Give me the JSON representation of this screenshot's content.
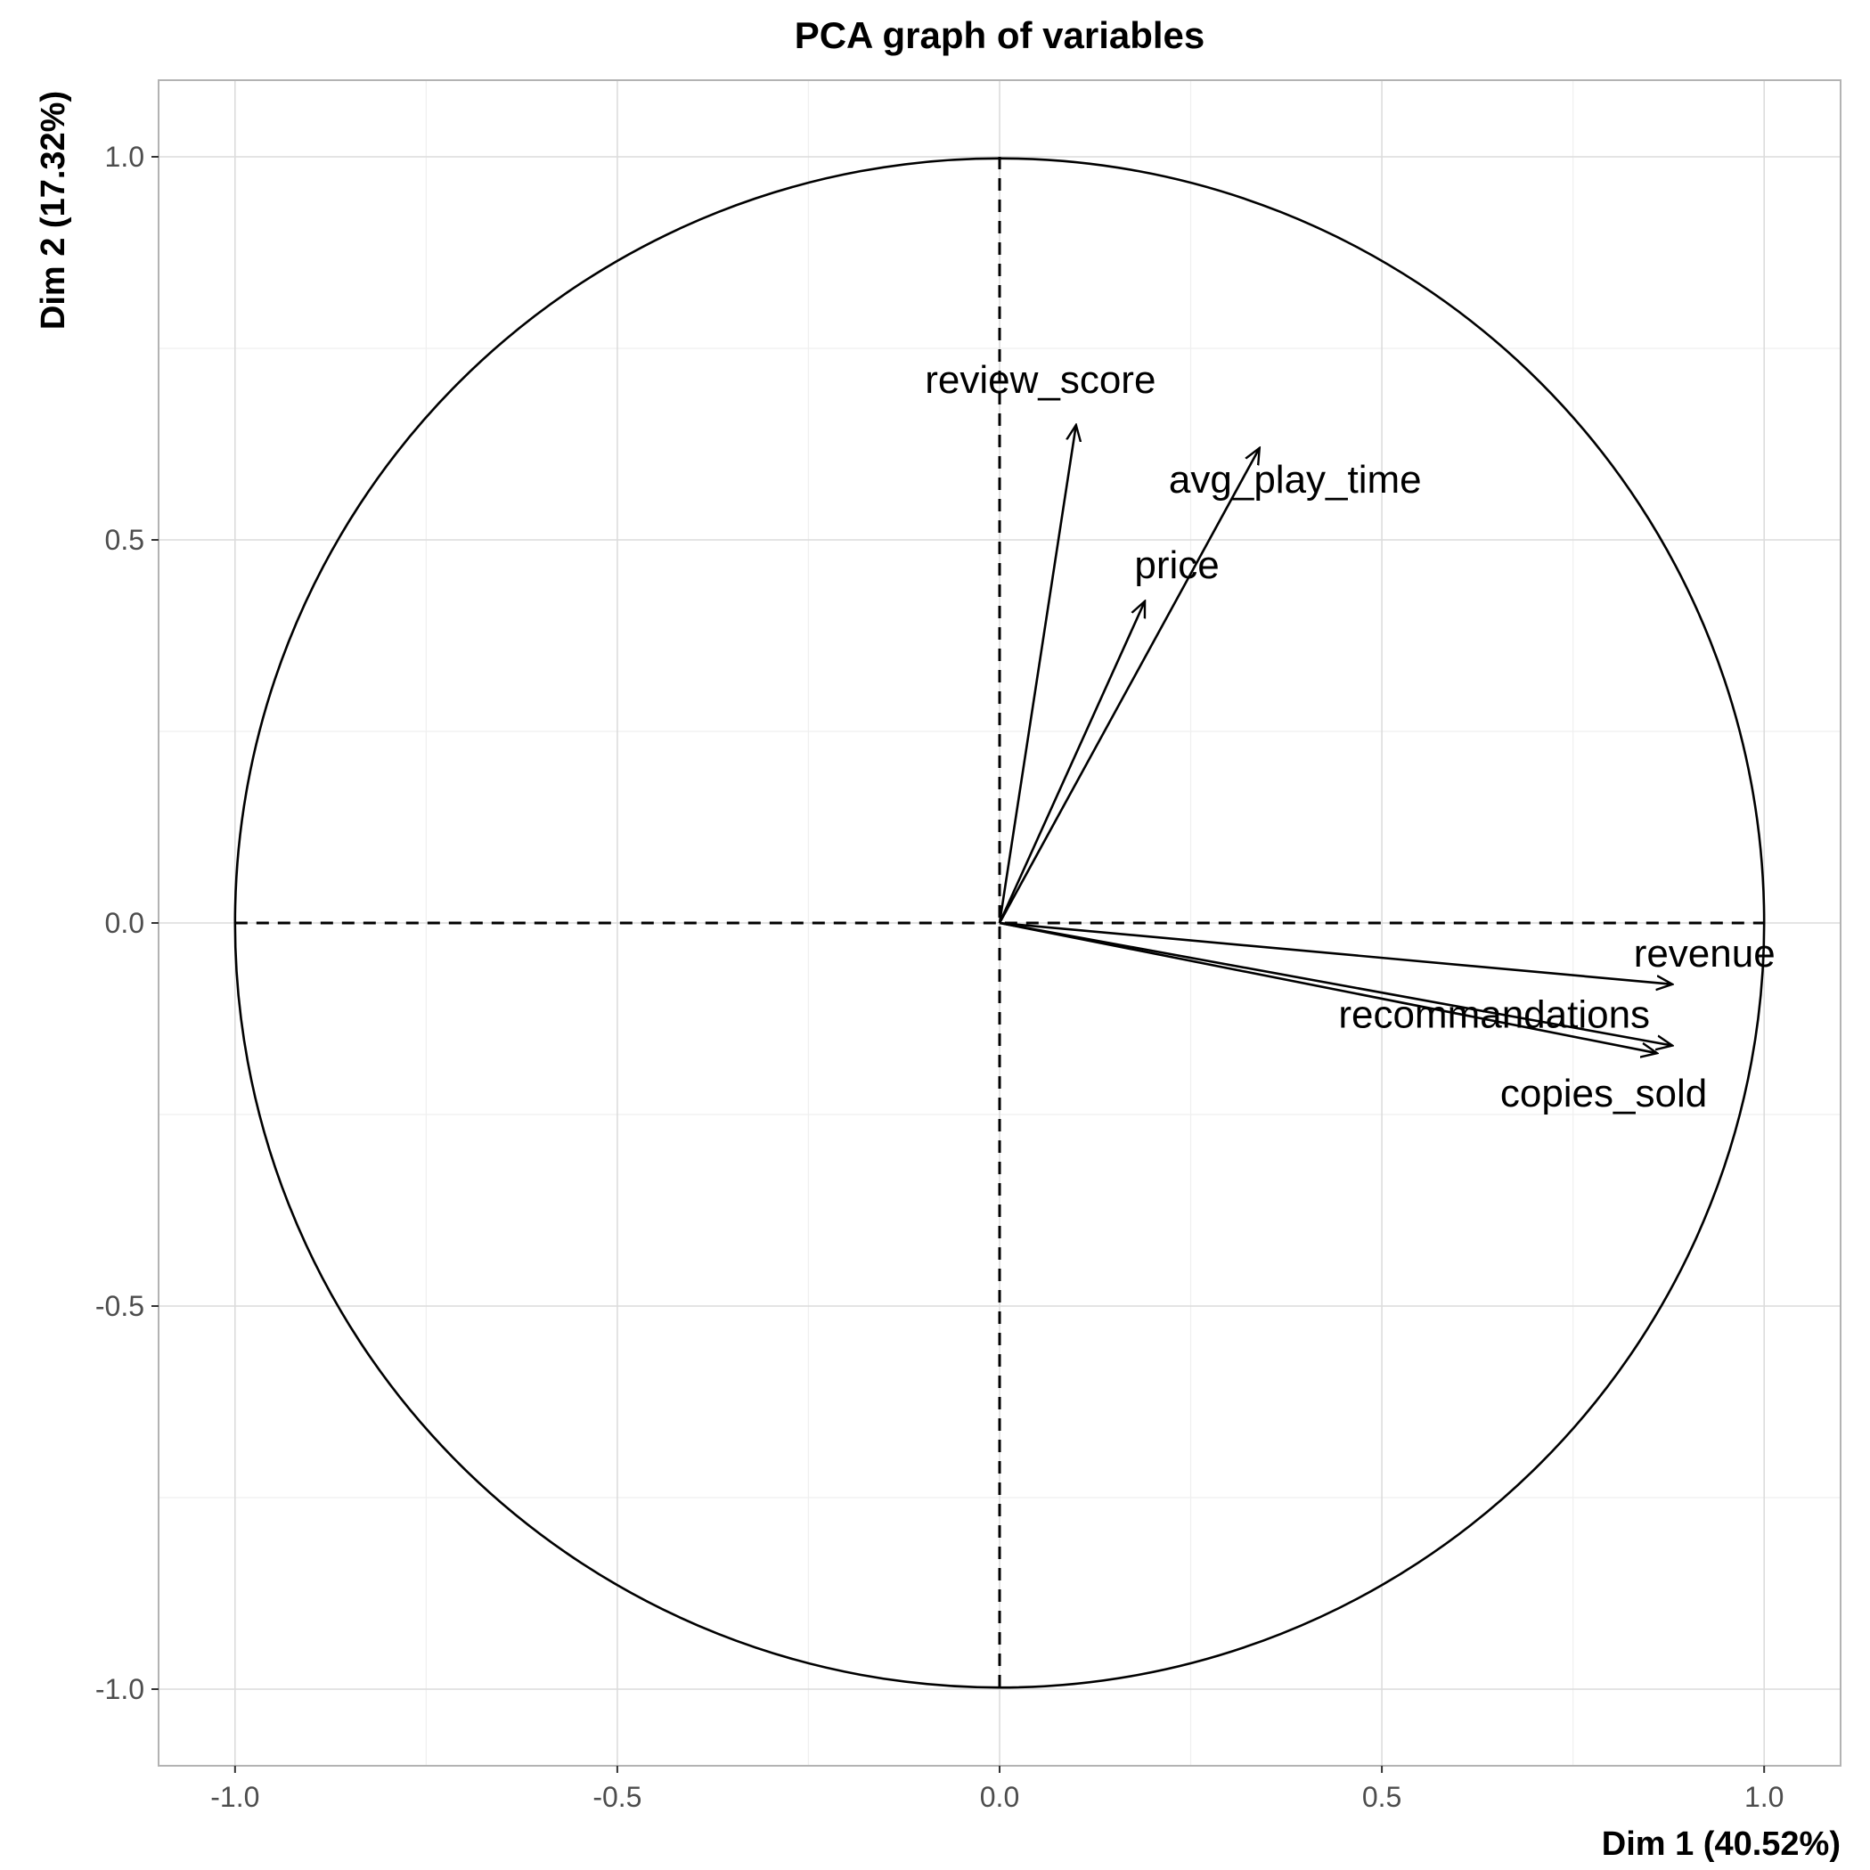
{
  "chart_data": {
    "type": "scatter",
    "subtype": "pca-correlation-circle",
    "title": "PCA graph of variables",
    "xlabel": "Dim 1 (40.52%)",
    "ylabel": "Dim 2 (17.32%)",
    "xlim": [
      -1.1,
      1.1
    ],
    "ylim": [
      -1.1,
      1.1
    ],
    "x_ticks": [
      -1.0,
      -0.5,
      0.0,
      0.5,
      1.0
    ],
    "y_ticks": [
      -1.0,
      -0.5,
      0.0,
      0.5,
      1.0
    ],
    "x_tick_labels": [
      "-1.0",
      "-0.5",
      "0.0",
      "0.5",
      "1.0"
    ],
    "y_tick_labels": [
      "-1.0",
      "-0.5",
      "0.0",
      "0.5",
      "1.0"
    ],
    "grid": true,
    "unit_circle": true,
    "reference_lines": "dashed at x=0 and y=0",
    "variables": [
      {
        "name": "review_score",
        "x": 0.1,
        "y": 0.65
      },
      {
        "name": "avg_play_time",
        "x": 0.34,
        "y": 0.62
      },
      {
        "name": "price",
        "x": 0.19,
        "y": 0.42
      },
      {
        "name": "revenue",
        "x": 0.88,
        "y": -0.08
      },
      {
        "name": "recommandations",
        "x": 0.88,
        "y": -0.16
      },
      {
        "name": "copies_sold",
        "x": 0.86,
        "y": -0.17
      }
    ],
    "colors": {
      "arrows": "#000000",
      "circle": "#000000",
      "grid": "#dcdcdc",
      "tick_text": "#4d4d4d"
    }
  }
}
